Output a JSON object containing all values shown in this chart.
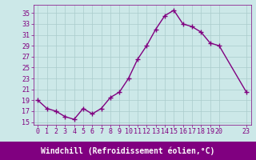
{
  "x": [
    0,
    1,
    2,
    3,
    4,
    5,
    6,
    7,
    8,
    9,
    10,
    11,
    12,
    13,
    14,
    15,
    16,
    17,
    18,
    19,
    20,
    23
  ],
  "y": [
    19,
    17.5,
    17,
    16,
    15.5,
    17.5,
    16.5,
    17.5,
    19.5,
    20.5,
    23,
    26.5,
    29,
    32,
    34.5,
    35.5,
    33,
    32.5,
    31.5,
    29.5,
    29,
    20.5
  ],
  "line_color": "#800080",
  "bg_color": "#cce8e8",
  "grid_color": "#aacccc",
  "bottom_bar_color": "#800080",
  "xlabel": "Windchill (Refroidissement éolien,°C)",
  "xlabel_color": "#ffffff",
  "tick_color": "#800080",
  "yticks": [
    15,
    17,
    19,
    21,
    23,
    25,
    27,
    29,
    31,
    33,
    35
  ],
  "xticks": [
    0,
    1,
    2,
    3,
    4,
    5,
    6,
    7,
    8,
    9,
    10,
    11,
    12,
    13,
    14,
    15,
    16,
    17,
    18,
    19,
    20,
    23
  ],
  "xlim": [
    -0.5,
    23.5
  ],
  "ylim": [
    14.5,
    36.5
  ],
  "marker": "+",
  "markersize": 5,
  "linewidth": 1.0,
  "fontsize_ticks": 6.0,
  "fontsize_xlabel": 7.0
}
